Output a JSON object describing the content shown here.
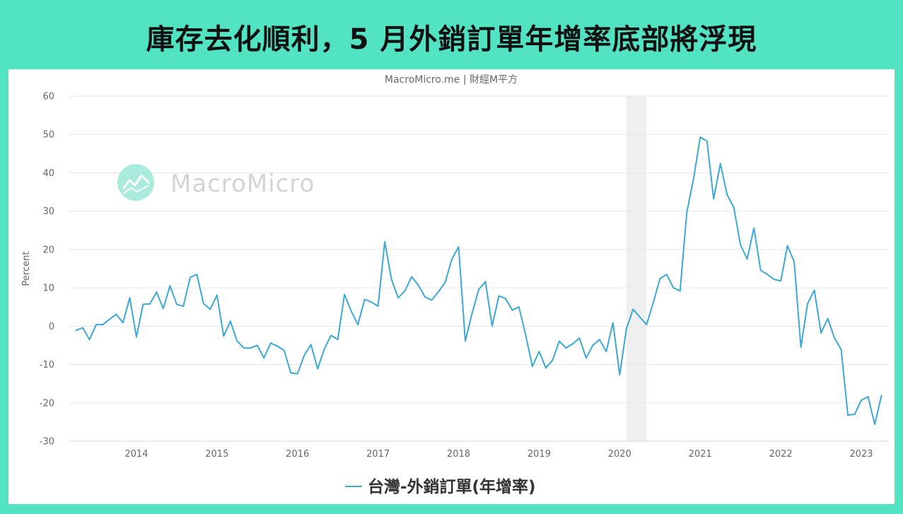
{
  "page": {
    "background_color": "#52e3c2",
    "panel_color": "#ffffff"
  },
  "chart_data": {
    "type": "line",
    "title": "庫存去化順利，5 月外銷訂單年增率底部將浮現",
    "credit": "MacroMicro.me | 財經M平方",
    "watermark": "MacroMicro",
    "ylabel": "Percent",
    "xlim": [
      "2013-03",
      "2023-05"
    ],
    "ylim": [
      -30,
      60
    ],
    "y_ticks": [
      60,
      50,
      40,
      30,
      20,
      10,
      0,
      -10,
      -20,
      -30
    ],
    "x_ticks": [
      "2014",
      "2015",
      "2016",
      "2017",
      "2018",
      "2019",
      "2020",
      "2021",
      "2022",
      "2023"
    ],
    "grid": true,
    "legend": "bottom-center",
    "shaded_ranges": [
      {
        "from": "2020-02",
        "to": "2020-05",
        "color": "#efefef"
      }
    ],
    "series": [
      {
        "name": "台灣-外銷訂單(年增率)",
        "color": "#3ca8d6",
        "x": [
          "2013-04",
          "2013-05",
          "2013-06",
          "2013-07",
          "2013-08",
          "2013-09",
          "2013-10",
          "2013-11",
          "2013-12",
          "2014-01",
          "2014-02",
          "2014-03",
          "2014-04",
          "2014-05",
          "2014-06",
          "2014-07",
          "2014-08",
          "2014-09",
          "2014-10",
          "2014-11",
          "2014-12",
          "2015-01",
          "2015-02",
          "2015-03",
          "2015-04",
          "2015-05",
          "2015-06",
          "2015-07",
          "2015-08",
          "2015-09",
          "2015-10",
          "2015-11",
          "2015-12",
          "2016-01",
          "2016-02",
          "2016-03",
          "2016-04",
          "2016-05",
          "2016-06",
          "2016-07",
          "2016-08",
          "2016-09",
          "2016-10",
          "2016-11",
          "2016-12",
          "2017-01",
          "2017-02",
          "2017-03",
          "2017-04",
          "2017-05",
          "2017-06",
          "2017-07",
          "2017-08",
          "2017-09",
          "2017-10",
          "2017-11",
          "2017-12",
          "2018-01",
          "2018-02",
          "2018-03",
          "2018-04",
          "2018-05",
          "2018-06",
          "2018-07",
          "2018-08",
          "2018-09",
          "2018-10",
          "2018-11",
          "2018-12",
          "2019-01",
          "2019-02",
          "2019-03",
          "2019-04",
          "2019-05",
          "2019-06",
          "2019-07",
          "2019-08",
          "2019-09",
          "2019-10",
          "2019-11",
          "2019-12",
          "2020-01",
          "2020-02",
          "2020-03",
          "2020-04",
          "2020-05",
          "2020-06",
          "2020-07",
          "2020-08",
          "2020-09",
          "2020-10",
          "2020-11",
          "2020-12",
          "2021-01",
          "2021-02",
          "2021-03",
          "2021-04",
          "2021-05",
          "2021-06",
          "2021-07",
          "2021-08",
          "2021-09",
          "2021-10",
          "2021-11",
          "2021-12",
          "2022-01",
          "2022-02",
          "2022-03",
          "2022-04",
          "2022-05",
          "2022-06",
          "2022-07",
          "2022-08",
          "2022-09",
          "2022-10",
          "2022-11",
          "2022-12",
          "2023-01",
          "2023-02",
          "2023-03",
          "2023-04"
        ],
        "values": [
          -1.1,
          -0.4,
          -3.5,
          0.4,
          0.4,
          1.8,
          3.1,
          0.9,
          7.4,
          -2.8,
          5.7,
          5.8,
          8.9,
          4.6,
          10.5,
          5.7,
          5.2,
          12.7,
          13.5,
          5.9,
          4.4,
          8.1,
          -2.6,
          1.3,
          -3.9,
          -5.7,
          -5.7,
          -5.0,
          -8.3,
          -4.4,
          -5.2,
          -6.3,
          -12.2,
          -12.4,
          -7.6,
          -4.8,
          -11.1,
          -5.9,
          -2.4,
          -3.5,
          8.3,
          3.9,
          0.4,
          7.0,
          6.3,
          5.2,
          22.0,
          12.2,
          7.4,
          9.2,
          12.9,
          10.7,
          7.6,
          6.8,
          9.0,
          11.4,
          17.5,
          20.7,
          -3.9,
          3.3,
          9.6,
          11.6,
          0.0,
          7.9,
          7.2,
          4.2,
          5.0,
          -2.4,
          -10.5,
          -6.6,
          -10.9,
          -8.9,
          -3.9,
          -5.7,
          -4.6,
          -3.1,
          -8.3,
          -5.0,
          -3.5,
          -6.6,
          0.9,
          -12.7,
          -0.7,
          4.4,
          2.4,
          0.4,
          6.1,
          12.4,
          13.5,
          10.0,
          9.2,
          29.7,
          38.4,
          49.3,
          48.3,
          33.2,
          42.4,
          34.3,
          31.0,
          21.2,
          17.5,
          25.6,
          14.6,
          13.5,
          12.2,
          11.8,
          21.0,
          16.8,
          -5.5,
          5.9,
          9.4,
          -1.8,
          2.0,
          -3.1,
          -6.1,
          -23.2,
          -23.0,
          -19.3,
          -18.4,
          -25.6,
          -18.1
        ]
      }
    ]
  }
}
